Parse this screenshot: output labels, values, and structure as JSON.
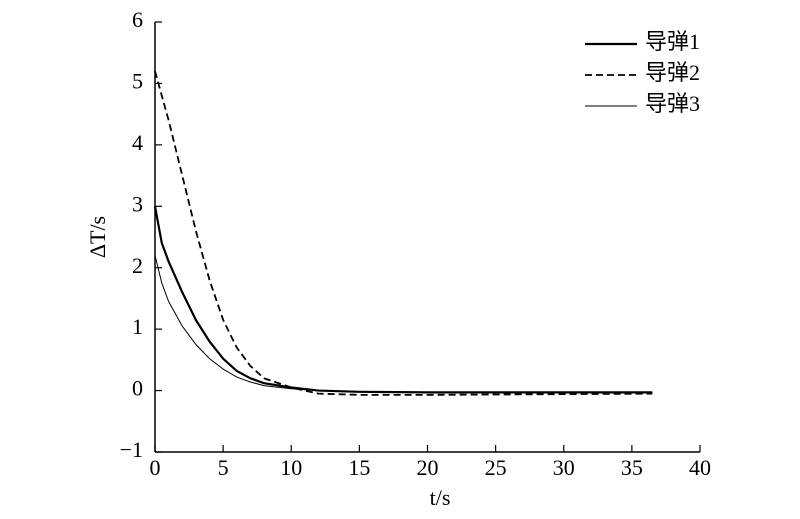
{
  "chart_data": {
    "type": "line",
    "xlabel": "t/s",
    "ylabel": "ΔT/s",
    "x": [
      0,
      0.5,
      1,
      2,
      3,
      4,
      5,
      6,
      7,
      8,
      10,
      12,
      15,
      20,
      36.5
    ],
    "series": [
      {
        "name": "导弹1",
        "color": "#000000",
        "line_style": "solid",
        "line_width": 2.2,
        "values": [
          3.0,
          2.4,
          2.1,
          1.6,
          1.15,
          0.8,
          0.52,
          0.32,
          0.2,
          0.12,
          0.05,
          0.0,
          -0.02,
          -0.03,
          -0.03
        ]
      },
      {
        "name": "导弹2",
        "color": "#000000",
        "line_style": "dashed",
        "line_width": 1.8,
        "values": [
          5.2,
          4.8,
          4.4,
          3.5,
          2.6,
          1.8,
          1.15,
          0.7,
          0.4,
          0.2,
          0.05,
          -0.05,
          -0.07,
          -0.07,
          -0.05
        ]
      },
      {
        "name": "导弹3",
        "color": "#000000",
        "line_style": "solid",
        "line_width": 1,
        "values": [
          2.2,
          1.75,
          1.45,
          1.05,
          0.75,
          0.52,
          0.35,
          0.22,
          0.14,
          0.08,
          0.03,
          0.0,
          -0.02,
          -0.03,
          -0.03
        ]
      }
    ],
    "xlim": [
      0,
      40
    ],
    "xticks": [
      0,
      5,
      10,
      15,
      20,
      25,
      30,
      35,
      40
    ],
    "ylim": [
      -1,
      6
    ],
    "yticks": [
      {
        "value": -1,
        "label": "−1"
      },
      0,
      1,
      2,
      3,
      4,
      5,
      6
    ],
    "legend": "upper right"
  }
}
